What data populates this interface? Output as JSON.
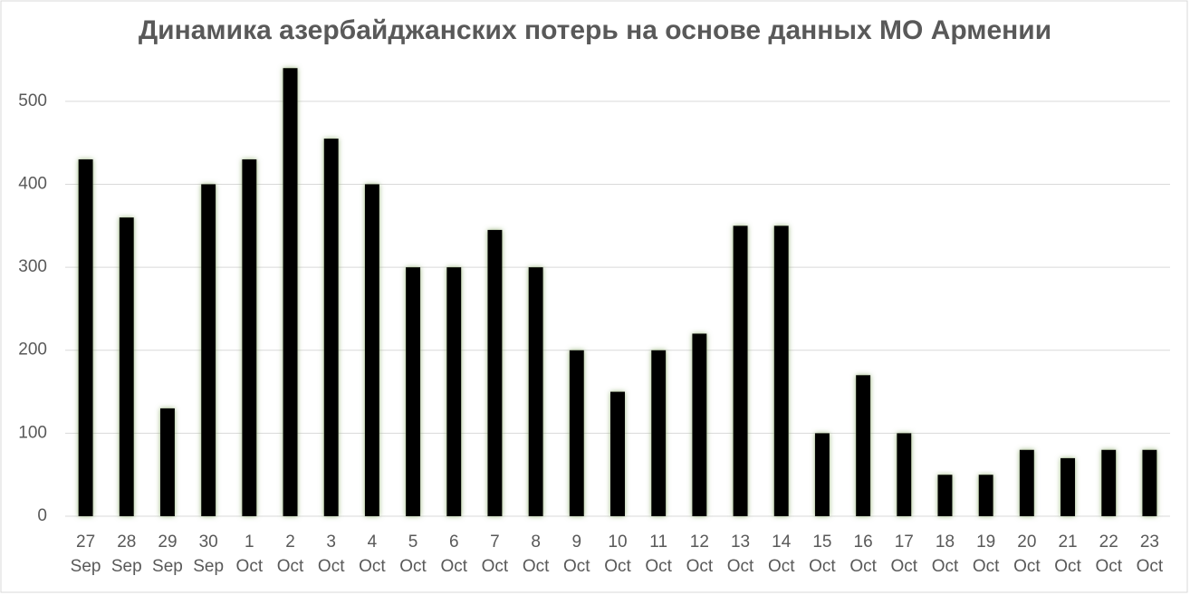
{
  "chart_data": {
    "type": "bar",
    "title": "Динамика азербайджанских потерь на основе данных МО Армении",
    "categories": [
      "27 Sep",
      "28 Sep",
      "29 Sep",
      "30 Sep",
      "1 Oct",
      "2 Oct",
      "3 Oct",
      "4 Oct",
      "5 Oct",
      "6 Oct",
      "7 Oct",
      "8 Oct",
      "9 Oct",
      "10 Oct",
      "11 Oct",
      "12 Oct",
      "13 Oct",
      "14 Oct",
      "15 Oct",
      "16 Oct",
      "17 Oct",
      "18 Oct",
      "19 Oct",
      "20 Oct",
      "21 Oct",
      "22 Oct",
      "23 Oct"
    ],
    "values": [
      430,
      360,
      130,
      400,
      430,
      540,
      455,
      400,
      300,
      300,
      345,
      300,
      200,
      150,
      200,
      220,
      350,
      350,
      100,
      170,
      100,
      50,
      50,
      80,
      70,
      80,
      80
    ],
    "color": "#000000",
    "ylim": [
      0,
      550
    ],
    "yticks": [
      0,
      100,
      200,
      300,
      400,
      500
    ],
    "grid": true
  }
}
